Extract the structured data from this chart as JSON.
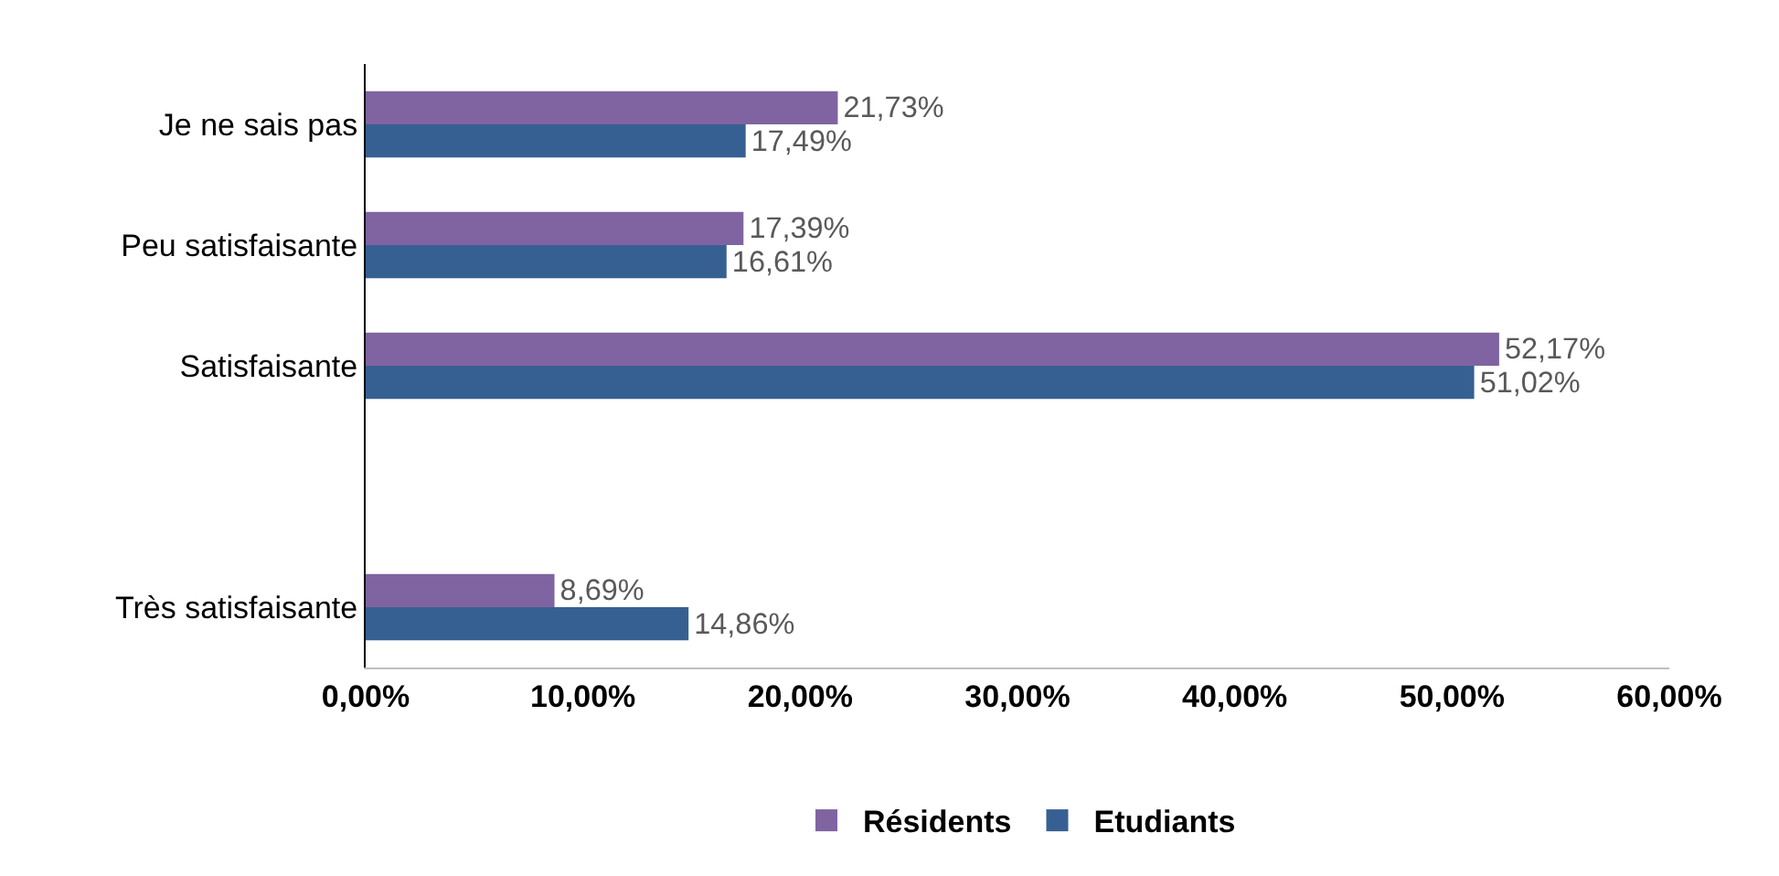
{
  "chart_data": {
    "type": "bar",
    "orientation": "horizontal",
    "categories": [
      "Je ne sais pas",
      "Peu satisfaisante",
      "Satisfaisante",
      null,
      "Très satisfaisante"
    ],
    "series": [
      {
        "name": "Résidents",
        "color": "#8064a2",
        "values": [
          21.73,
          17.39,
          52.17,
          null,
          8.69
        ],
        "value_labels": [
          "21,73%",
          "17,39%",
          "52,17%",
          null,
          "8,69%"
        ]
      },
      {
        "name": "Etudiants",
        "color": "#376092",
        "values": [
          17.49,
          16.61,
          51.02,
          null,
          14.86
        ],
        "value_labels": [
          "17,49%",
          "16,61%",
          "51,02%",
          null,
          "14,86%"
        ]
      }
    ],
    "xlim": [
      0,
      60
    ],
    "xticks": [
      {
        "value": 0,
        "label": "0,00%"
      },
      {
        "value": 10,
        "label": "10,00%"
      },
      {
        "value": 20,
        "label": "20,00%"
      },
      {
        "value": 30,
        "label": "30,00%"
      },
      {
        "value": 40,
        "label": "40,00%"
      },
      {
        "value": 50,
        "label": "50,00%"
      },
      {
        "value": 60,
        "label": "60,00%"
      }
    ],
    "legend": "bottom"
  }
}
